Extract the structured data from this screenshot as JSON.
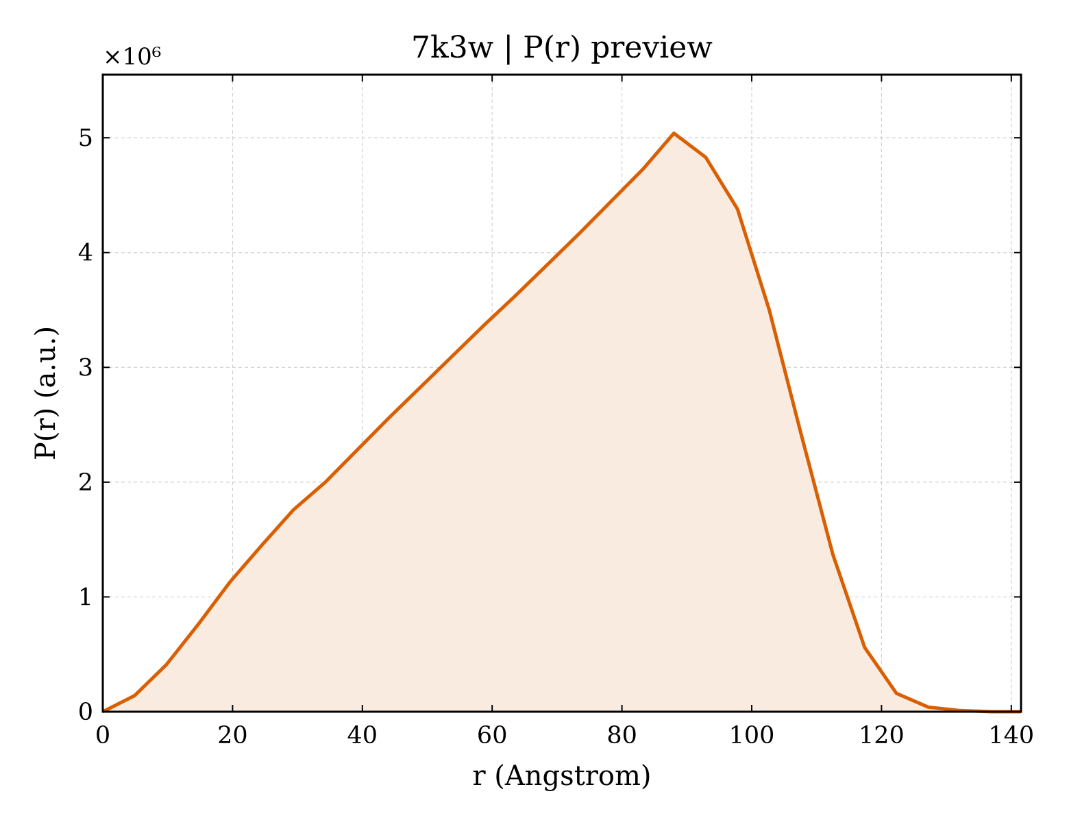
{
  "chart_data": {
    "type": "area",
    "title": "7k3w | P(r) preview",
    "xlabel": "r (Angstrom)",
    "ylabel": "P(r) (a.u.)",
    "y_multiplier_label": "×10⁶",
    "xlim": [
      0,
      141.5
    ],
    "ylim": [
      0,
      5.55
    ],
    "xticks": [
      0,
      20,
      40,
      60,
      80,
      100,
      120,
      140
    ],
    "yticks": [
      0,
      1,
      2,
      3,
      4,
      5
    ],
    "grid": true,
    "line_color": "#d95f02",
    "fill_color": "#f9ebe0",
    "series": [
      {
        "x": [
          0,
          4.9,
          9.8,
          14.7,
          19.6,
          24.5,
          29.4,
          34.3,
          39.2,
          44.1,
          49.0,
          53.9,
          58.8,
          63.7,
          68.6,
          73.5,
          78.4,
          83.3,
          88.0,
          92.9,
          97.8,
          102.7,
          107.6,
          112.5,
          117.4,
          122.3,
          127.2,
          132.1,
          137.0,
          141.5
        ],
        "values": [
          0.0,
          0.14,
          0.41,
          0.76,
          1.13,
          1.45,
          1.76,
          2.0,
          2.28,
          2.56,
          2.83,
          3.1,
          3.37,
          3.63,
          3.9,
          4.17,
          4.45,
          4.73,
          5.04,
          4.83,
          4.38,
          3.5,
          2.42,
          1.37,
          0.56,
          0.16,
          0.04,
          0.01,
          0.0,
          0.0
        ]
      }
    ]
  }
}
